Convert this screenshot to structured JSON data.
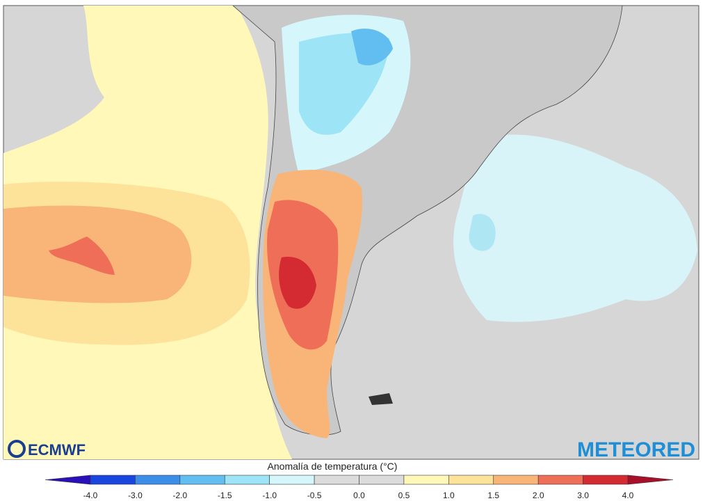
{
  "logos": {
    "left": "ECMWF",
    "right": "METEORED"
  },
  "legend": {
    "title": "Anomalía de temperatura (°C)",
    "ticks": [
      "-4.0",
      "-3.0",
      "-2.0",
      "-1.5",
      "-1.0",
      "-0.5",
      "0.0",
      "0.5",
      "1.0",
      "1.5",
      "2.0",
      "3.0",
      "4.0"
    ],
    "colors": [
      "#1a46e0",
      "#3c8ee8",
      "#62bdf0",
      "#9de4f7",
      "#d5f7fb",
      "#dcdcdc",
      "#dcdcdc",
      "#fff8b8",
      "#fde39a",
      "#f9b578",
      "#ef6e58",
      "#d42a32"
    ],
    "under_color": "#2a10b8",
    "over_color": "#a8102a"
  }
}
